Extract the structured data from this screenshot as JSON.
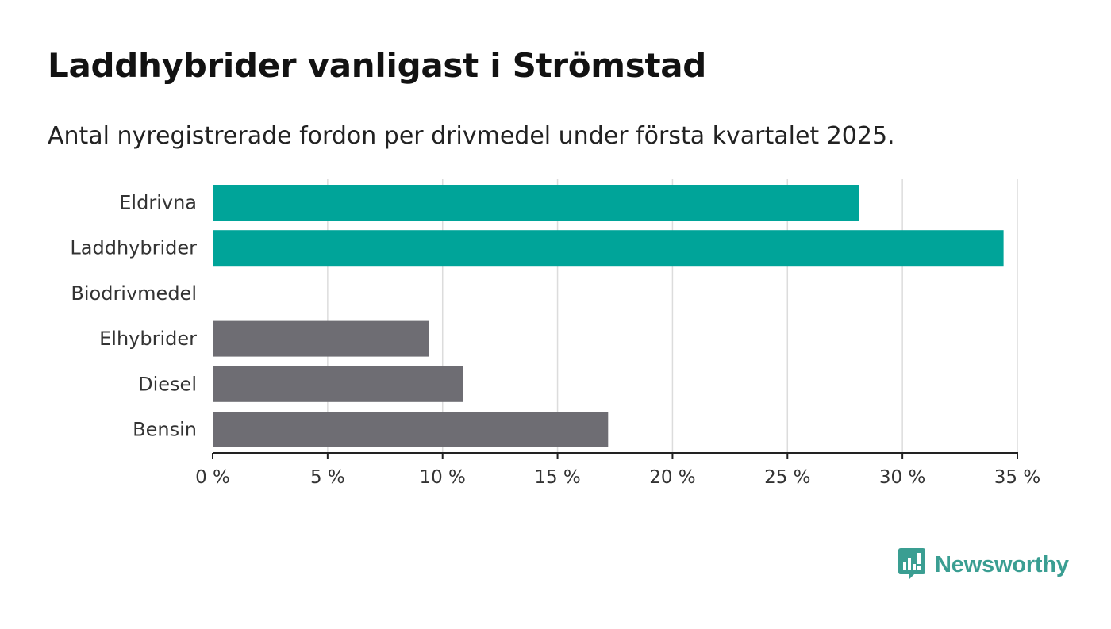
{
  "title": "Laddhybrider vanligast i Strömstad",
  "subtitle": "Antal nyregistrerade fordon per drivmedel under första kvartalet 2025.",
  "brand": {
    "name": "Newsworthy",
    "icon": "newsworthy-logo-icon",
    "color": "#3a9e92"
  },
  "chart_data": {
    "type": "bar",
    "orientation": "horizontal",
    "categories": [
      "Eldrivna",
      "Laddhybrider",
      "Biodrivmedel",
      "Elhybrider",
      "Diesel",
      "Bensin"
    ],
    "values": [
      28.1,
      34.4,
      0,
      9.4,
      10.9,
      17.2
    ],
    "colors": [
      "#00a499",
      "#00a499",
      "#6e6d73",
      "#6e6d73",
      "#6e6d73",
      "#6e6d73"
    ],
    "xlim": [
      0,
      35
    ],
    "ticks": [
      0,
      5,
      10,
      15,
      20,
      25,
      30,
      35
    ],
    "tick_labels": [
      "0 %",
      "5 %",
      "10 %",
      "15 %",
      "20 %",
      "25 %",
      "30 %",
      "35 %"
    ],
    "grid": true,
    "xlabel": "",
    "ylabel": ""
  }
}
